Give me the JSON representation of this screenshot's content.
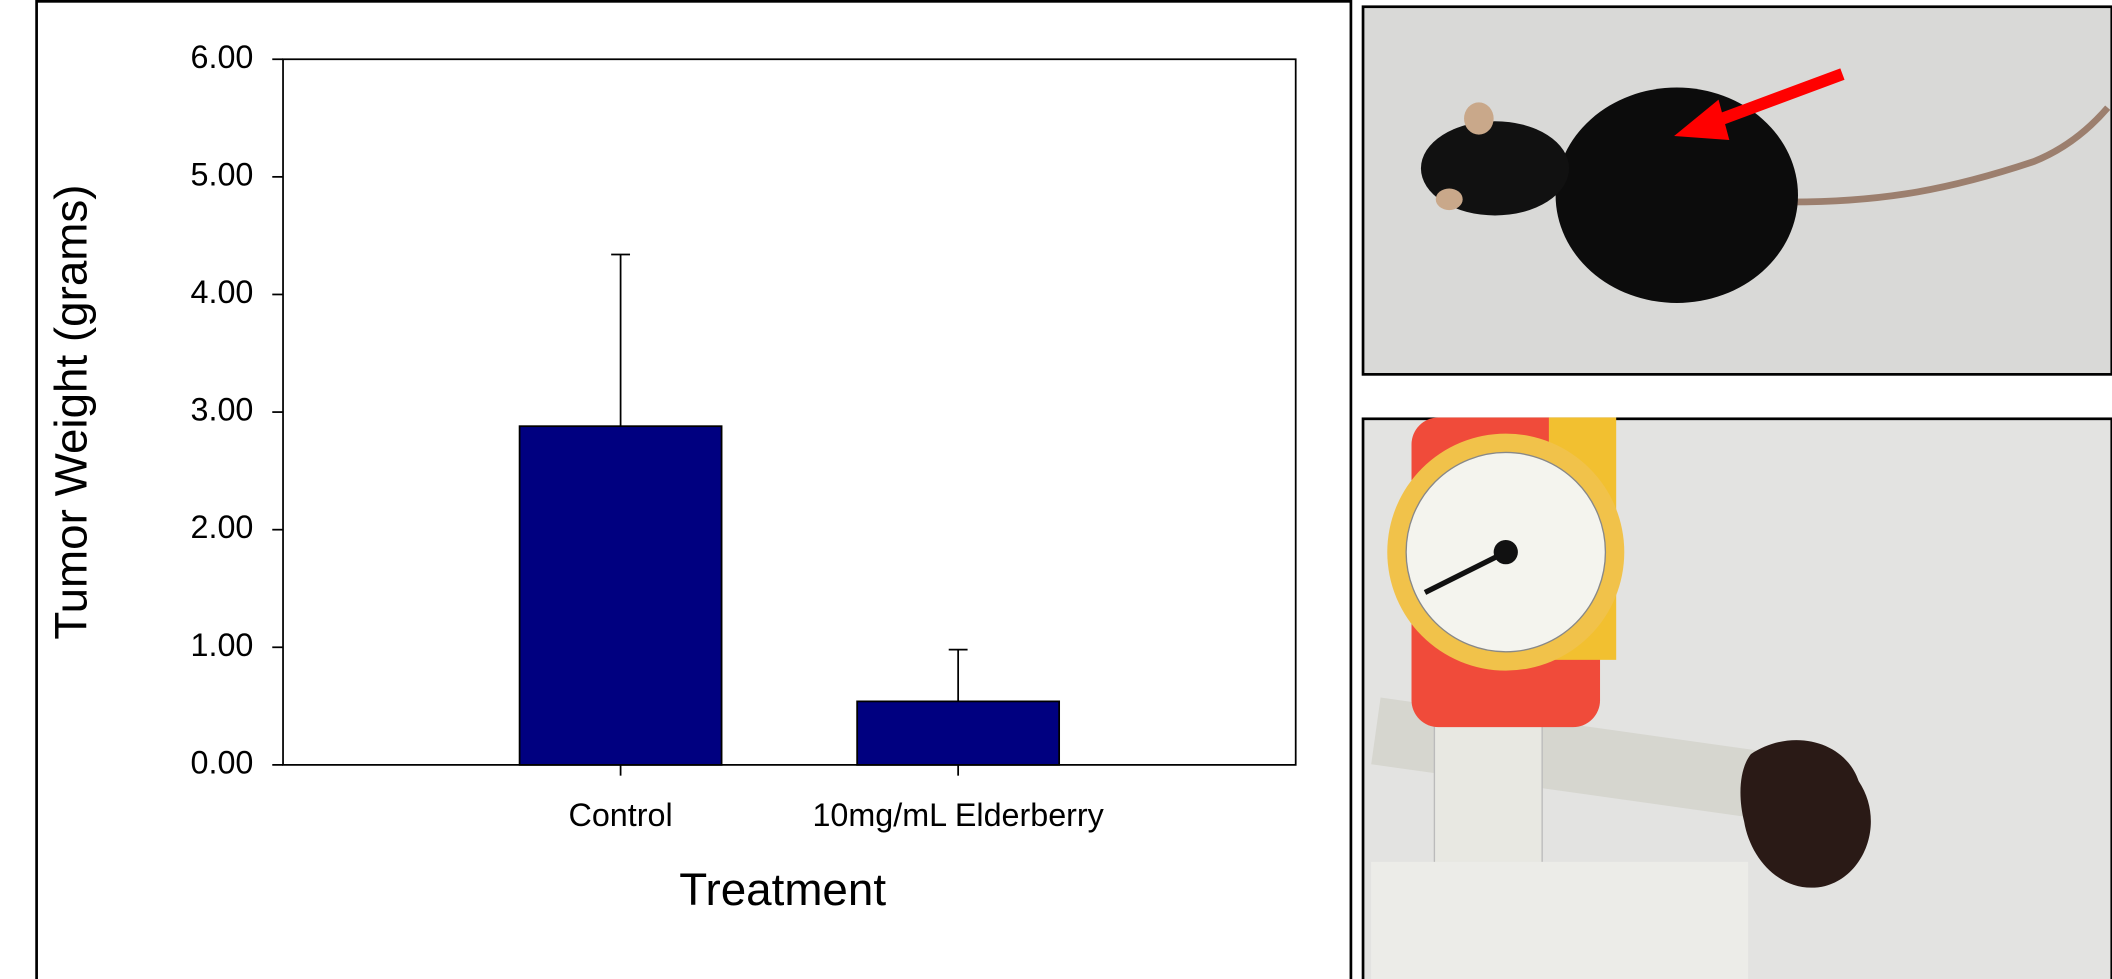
{
  "chart_data": {
    "type": "bar",
    "y_label": "Tumor Weight (grams)",
    "x_label": "Treatment",
    "categories": [
      "Control",
      "10mg/mL Elderberry"
    ],
    "values": [
      2.88,
      0.54
    ],
    "errors": [
      1.46,
      0.44
    ],
    "color": "#000080",
    "ylim": [
      0,
      6
    ],
    "yticks": [
      {
        "value": 0,
        "label": "0.00"
      },
      {
        "value": 1,
        "label": "1.00"
      },
      {
        "value": 2,
        "label": "2.00"
      },
      {
        "value": 3,
        "label": "3.00"
      },
      {
        "value": 4,
        "label": "4.00"
      },
      {
        "value": 5,
        "label": "5.00"
      },
      {
        "value": 6,
        "label": "6.00"
      }
    ],
    "grid": false
  }
}
